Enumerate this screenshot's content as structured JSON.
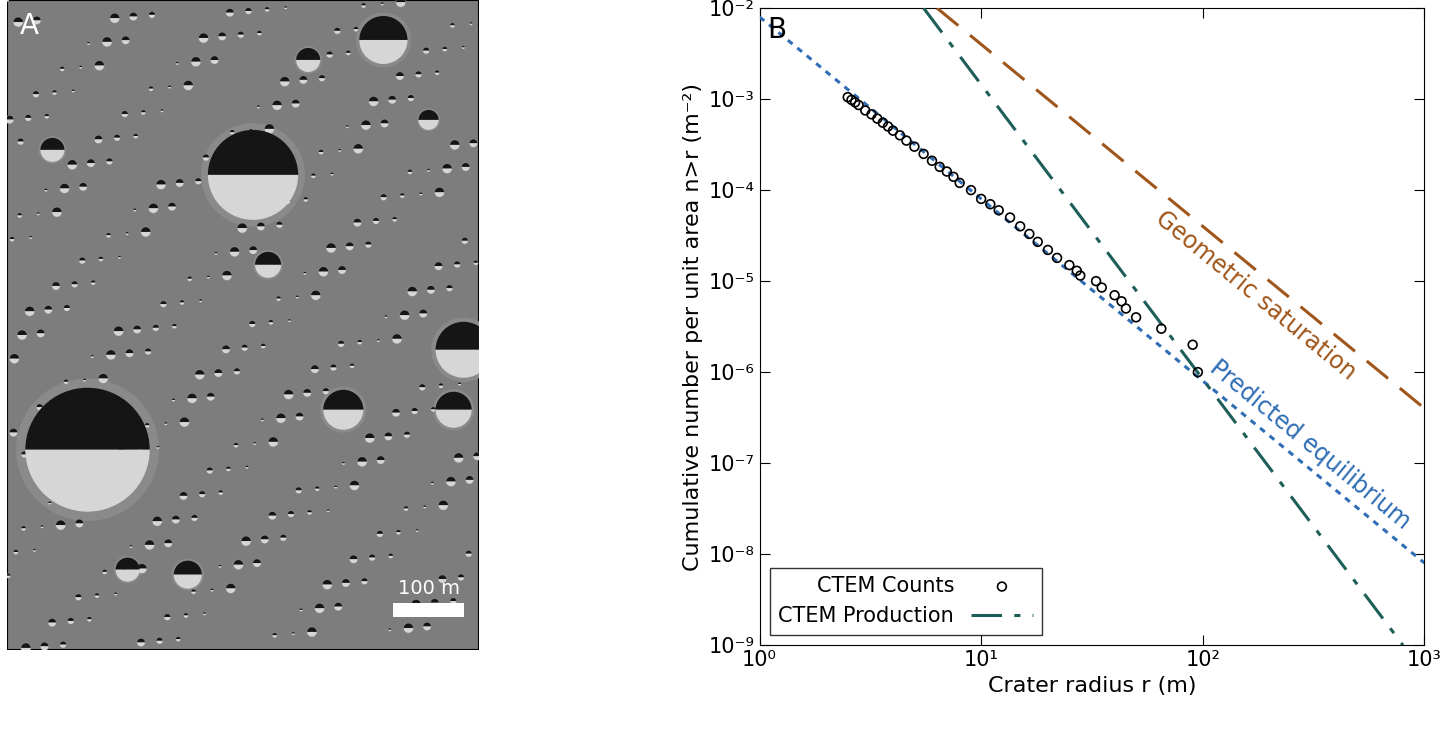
{
  "image_panel": {
    "label": "A",
    "scale_bar": "100 m"
  },
  "chart_data": {
    "type": "line",
    "panel_label": "B",
    "x_label": "Crater radius r (m)",
    "y_label": "Cumulative number per unit area n>r (m⁻²)",
    "log": true,
    "legend": "lower left",
    "xlim": [
      1,
      1000
    ],
    "ylim": [
      1e-09,
      0.01
    ],
    "xticks": [
      {
        "value": 1,
        "label": "10⁰"
      },
      {
        "value": 10,
        "label": "10¹"
      },
      {
        "value": 100,
        "label": "10²"
      },
      {
        "value": 1000,
        "label": "10³"
      }
    ],
    "yticks": [
      {
        "value": 1e-09,
        "label": "10⁻⁹"
      },
      {
        "value": 1e-08,
        "label": "10⁻⁸"
      },
      {
        "value": 1e-07,
        "label": "10⁻⁷"
      },
      {
        "value": 1e-06,
        "label": "10⁻⁶"
      },
      {
        "value": 1e-05,
        "label": "10⁻⁵"
      },
      {
        "value": 0.0001,
        "label": "10⁻⁴"
      },
      {
        "value": 0.001,
        "label": "10⁻³"
      },
      {
        "value": 0.01,
        "label": "10⁻²"
      }
    ],
    "annotations": [
      "Geometric saturation",
      "Predicted equilibrium"
    ],
    "series": [
      {
        "name": "Geometric saturation",
        "type": "line",
        "line_style": "dashed",
        "color": "#a0561b",
        "x": [
          6.32,
          1000
        ],
        "values": [
          0.01,
          4e-07
        ]
      },
      {
        "name": "Predicted equilibrium",
        "type": "line",
        "line_style": "dotted",
        "color": "#2f6db5",
        "x": [
          1,
          1000
        ],
        "values": [
          0.008,
          8e-09
        ]
      },
      {
        "name": "CTEM Counts",
        "type": "scatter",
        "marker": "circle",
        "color": "#000000",
        "x": [
          2.5,
          2.6,
          2.7,
          2.8,
          3,
          3.2,
          3.4,
          3.6,
          3.8,
          4,
          4.3,
          4.6,
          5,
          5.5,
          6,
          6.5,
          7,
          7.5,
          8,
          9,
          10,
          11,
          12,
          13.5,
          15,
          16.5,
          18,
          20,
          22,
          25,
          27,
          28,
          33,
          35,
          40,
          43,
          45,
          50,
          65,
          90,
          95
        ],
        "values": [
          0.00105,
          0.00098,
          0.00092,
          0.00086,
          0.00075,
          0.00068,
          0.00061,
          0.00055,
          0.0005,
          0.00045,
          0.0004,
          0.00035,
          0.0003,
          0.00025,
          0.00021,
          0.00018,
          0.00016,
          0.00014,
          0.00012,
          0.0001,
          8e-05,
          7e-05,
          6e-05,
          5e-05,
          4e-05,
          3.3e-05,
          2.7e-05,
          2.2e-05,
          1.8e-05,
          1.5e-05,
          1.3e-05,
          1.15e-05,
          1e-05,
          8.5e-06,
          7e-06,
          6e-06,
          5e-06,
          4e-06,
          3e-06,
          2e-06,
          1e-06
        ]
      },
      {
        "name": "CTEM Production",
        "type": "line",
        "line_style": "dashdot",
        "color": "#1d5e58",
        "x": [
          5.5,
          800
        ],
        "values": [
          0.01,
          1e-09
        ]
      }
    ]
  }
}
